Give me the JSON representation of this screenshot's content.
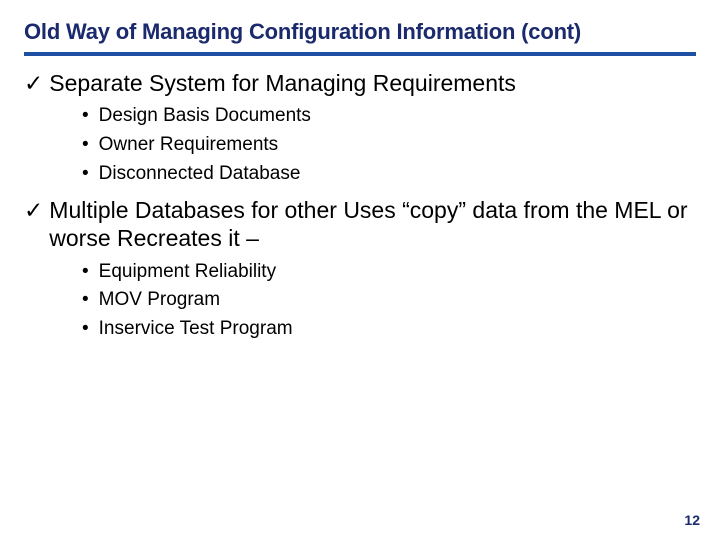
{
  "colors": {
    "title": "#1a2a6c",
    "rule": "#1f4fa3",
    "text": "#000000",
    "pagenum": "#1a2a6c",
    "background": "#ffffff"
  },
  "fonts": {
    "title_size": 22,
    "check_size": 23,
    "bullet_size": 19,
    "pagenum_size": 14
  },
  "title": "Old Way of Managing Configuration Information (cont)",
  "groups": [
    {
      "heading": "Separate System for Managing Requirements",
      "bullets": [
        "Design Basis Documents",
        "Owner Requirements",
        "Disconnected Database"
      ]
    },
    {
      "heading": "Multiple Databases for other Uses “copy” data from the MEL or worse Recreates it –",
      "bullets": [
        "Equipment Reliability",
        "MOV Program",
        "Inservice Test Program"
      ]
    }
  ],
  "page_number": "12"
}
